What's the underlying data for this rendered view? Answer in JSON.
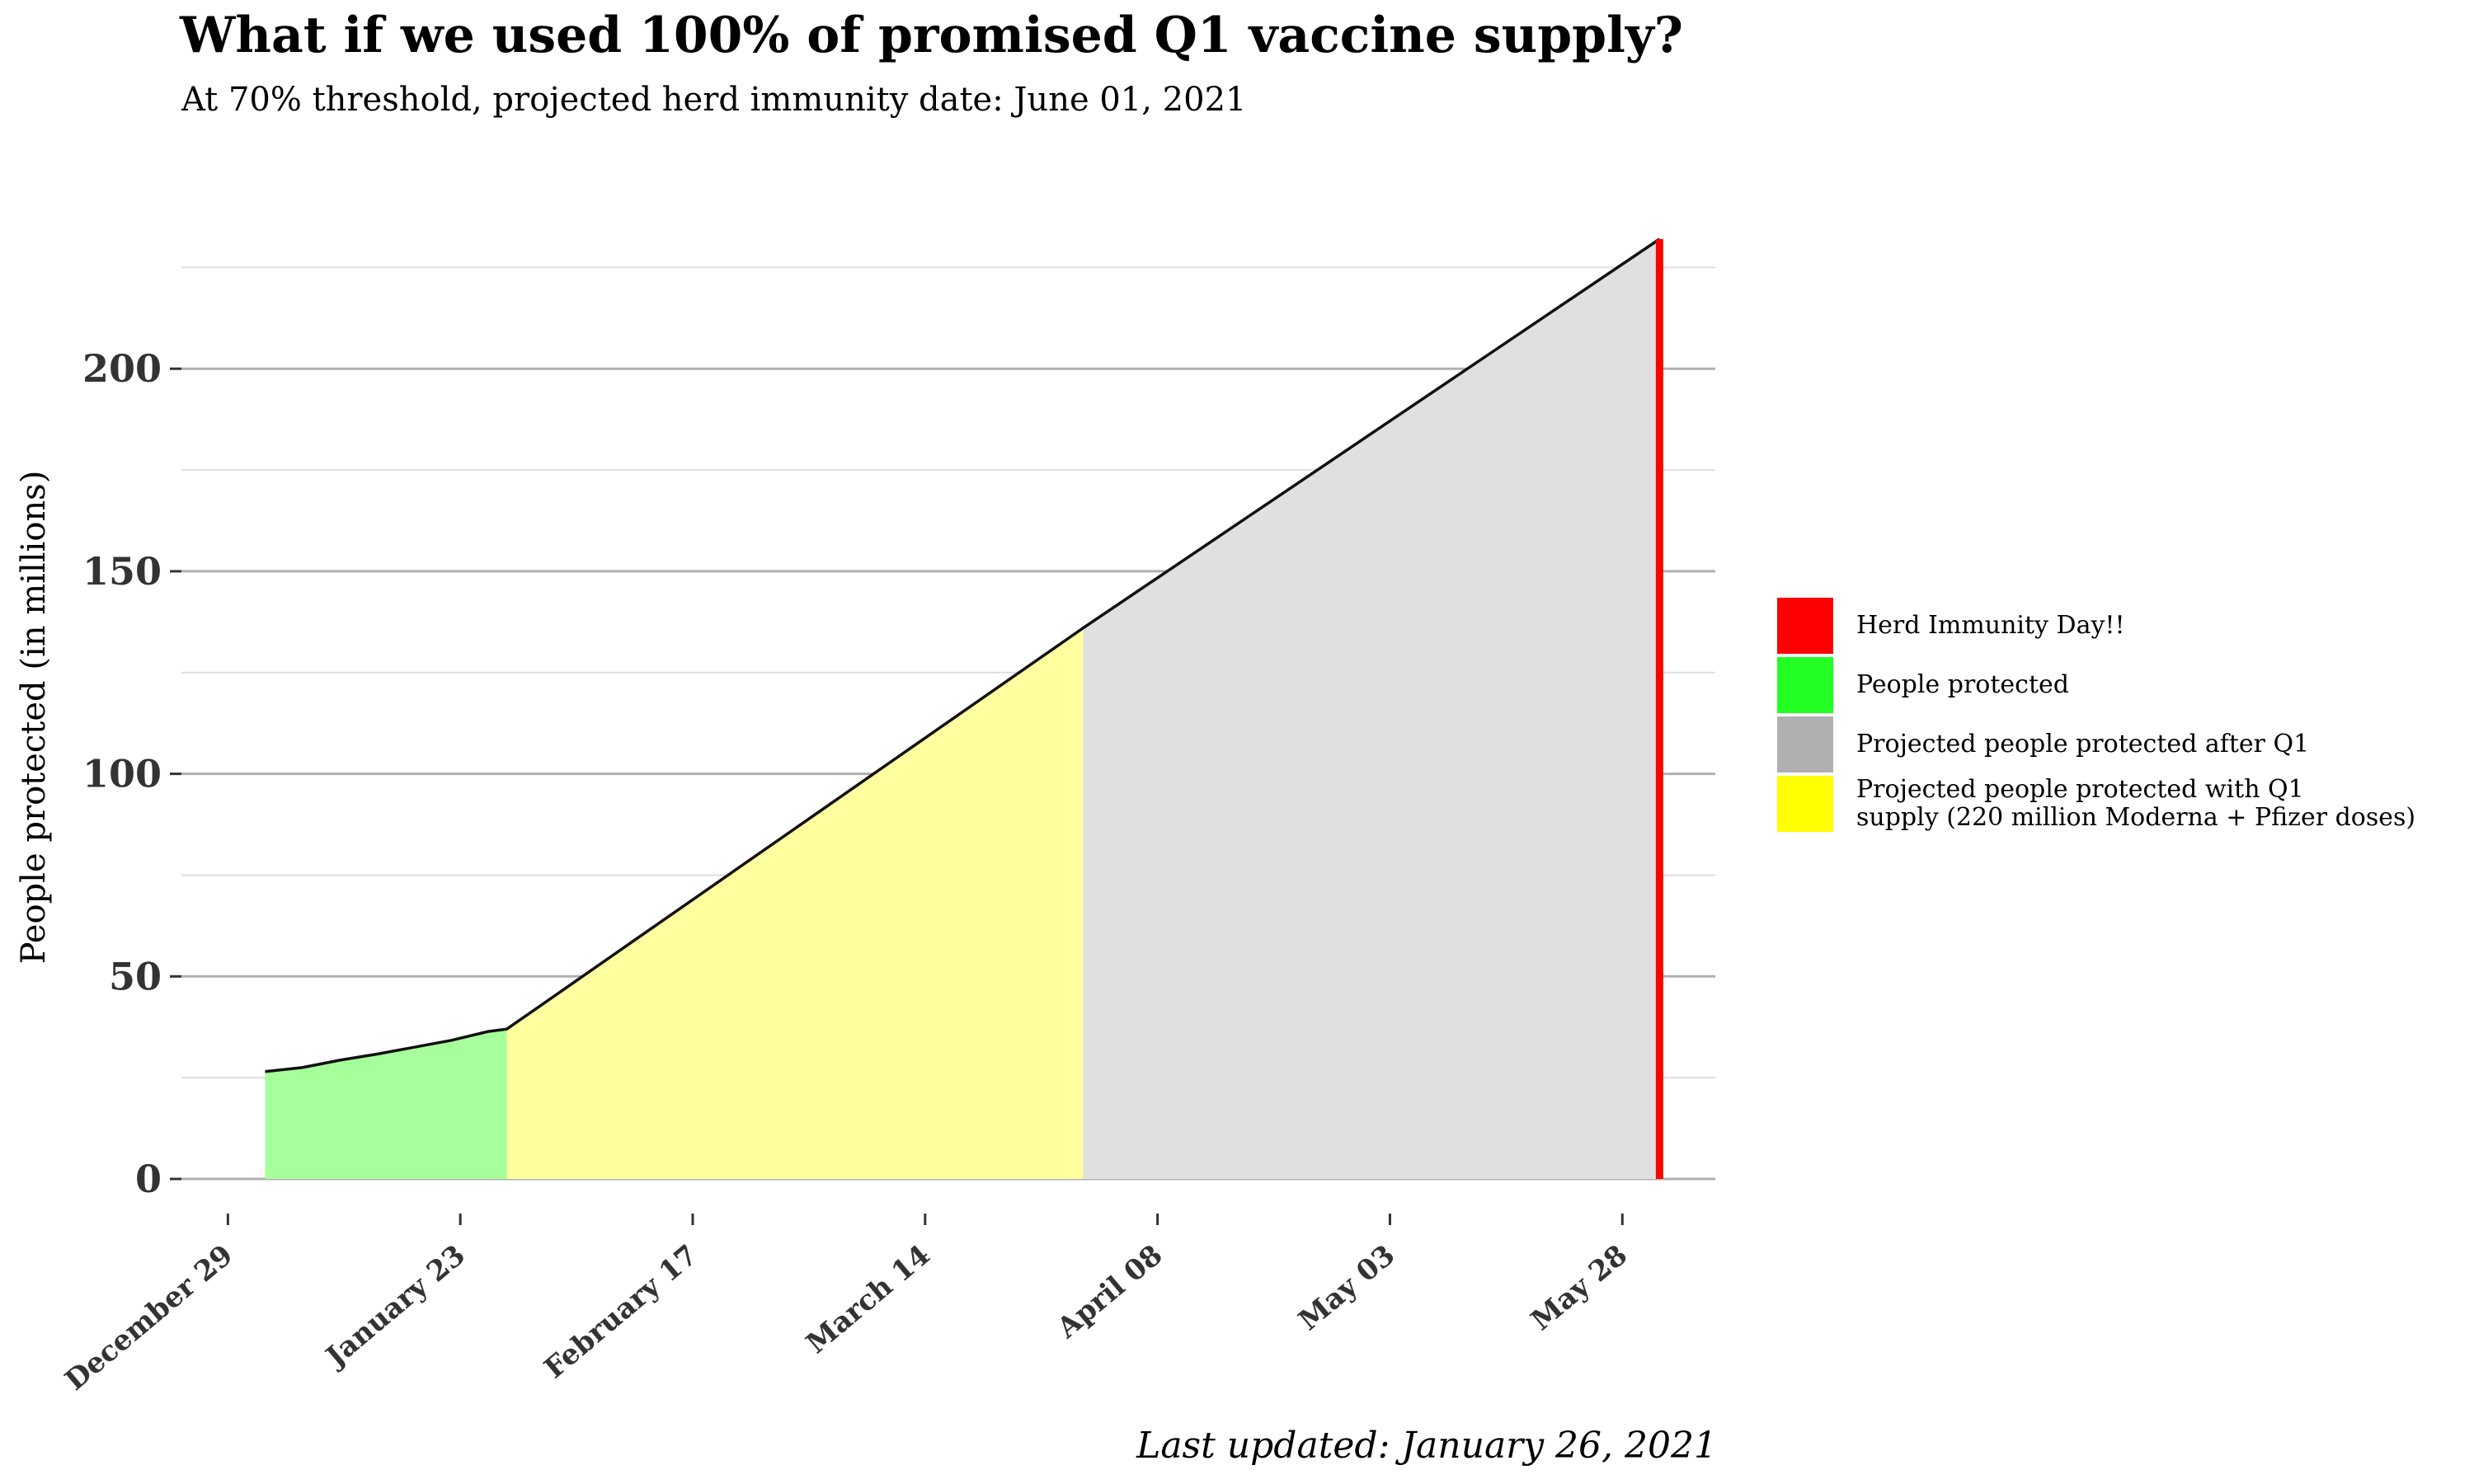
{
  "title": "What if we used 100% of promised Q1 vaccine supply?",
  "subtitle": "At 70% threshold, projected herd immunity date: June 01, 2021",
  "caption": "Last updated: January 26, 2021",
  "colors": {
    "people_protected": "#a6ff9a",
    "projected_q1": "#ffff9f",
    "projected_after_q1": "#e0e0e0",
    "herd_immunity": "#ff0000",
    "line": "#111111"
  },
  "legend": [
    {
      "label": "Herd Immunity Day!!",
      "color": "#ff0000"
    },
    {
      "label": "People protected",
      "color": "#22ff22"
    },
    {
      "label": "Projected people protected after Q1",
      "color": "#b0b0b0"
    },
    {
      "label": "Projected people protected with Q1\nsupply (220 million Moderna + Pfizer doses)",
      "color": "#ffff00"
    }
  ],
  "chart_data": {
    "type": "area",
    "title": "What if we used 100% of promised Q1 vaccine supply?",
    "subtitle": "At 70% threshold, projected herd immunity date: June 01, 2021",
    "xlabel": "",
    "ylabel": "People protected (in millions)",
    "x_tick_labels": [
      "December 29",
      "January 23",
      "February 17",
      "March 14",
      "April 08",
      "May 03",
      "May 28"
    ],
    "x_tick_dates": [
      "2020-12-29",
      "2021-01-23",
      "2021-02-17",
      "2021-03-14",
      "2021-04-08",
      "2021-05-03",
      "2021-05-28"
    ],
    "y_ticks": [
      0,
      50,
      100,
      150,
      200
    ],
    "ylim": [
      0,
      232
    ],
    "xlim": [
      "2020-12-24",
      "2021-06-07"
    ],
    "grid": true,
    "legend_position": "right",
    "series": [
      {
        "name": "People protected",
        "x": [
          "2021-01-02",
          "2021-01-06",
          "2021-01-10",
          "2021-01-14",
          "2021-01-18",
          "2021-01-22",
          "2021-01-26",
          "2021-01-28"
        ],
        "values": [
          26.5,
          27.5,
          29.3,
          30.8,
          32.5,
          34.2,
          36.4,
          37.0
        ]
      },
      {
        "name": "Projected people protected with Q1 supply (220 million Moderna + Pfizer doses)",
        "x": [
          "2021-01-28",
          "2021-03-31"
        ],
        "values": [
          37.0,
          136.0
        ]
      },
      {
        "name": "Projected people protected after Q1",
        "x": [
          "2021-03-31",
          "2021-06-01"
        ],
        "values": [
          136.0,
          232.0
        ]
      },
      {
        "name": "Herd Immunity Day!!",
        "x": [
          "2021-06-01"
        ],
        "values": [
          232.0
        ]
      }
    ]
  }
}
